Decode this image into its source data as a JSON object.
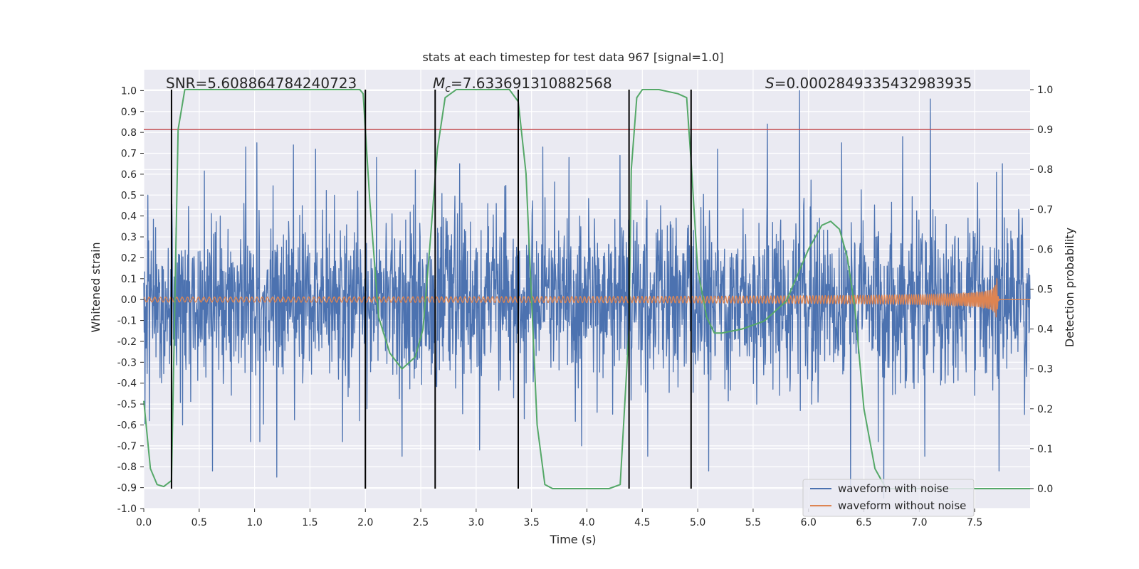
{
  "chart_data": {
    "type": "line",
    "title": "stats at each timestep for test data 967 [signal=1.0]",
    "xlabel": "Time (s)",
    "ylabel": "Whitened strain",
    "y2label": "Detection probability",
    "xlim": [
      0.0,
      8.0
    ],
    "ylim": [
      -1.0,
      1.1
    ],
    "y2lim": [
      -0.05,
      1.05
    ],
    "xticks": [
      "0.0",
      "0.5",
      "1.0",
      "1.5",
      "2.0",
      "2.5",
      "3.0",
      "3.5",
      "4.0",
      "4.5",
      "5.0",
      "5.5",
      "6.0",
      "6.5",
      "7.0",
      "7.5"
    ],
    "yticks": [
      "1.0",
      "0.9",
      "0.8",
      "0.7",
      "0.6",
      "0.5",
      "0.4",
      "0.3",
      "0.2",
      "0.1",
      "0.0",
      "-0.1",
      "-0.2",
      "-0.3",
      "-0.4",
      "-0.5",
      "-0.6",
      "-0.7",
      "-0.8",
      "-0.9",
      "-1.0"
    ],
    "y2ticks": [
      "1.0",
      "0.9",
      "0.8",
      "0.7",
      "0.6",
      "0.5",
      "0.4",
      "0.3",
      "0.2",
      "0.1",
      "0.0"
    ],
    "grid": true,
    "background": "#eaeaf2",
    "legend_position": "lower-right",
    "annotations": {
      "snr": "SNR=5.608864784240723",
      "mc_symbol": "M",
      "mc_sub": "c",
      "mc_value": "=7.633691310882568",
      "s_symbol": "S",
      "s_value": "=0.0002849335432983935"
    },
    "threshold": {
      "value": 0.9,
      "axis": "right",
      "color": "#c44e52"
    },
    "vertical_lines_x": [
      0.25,
      2.0,
      2.63,
      3.38,
      4.38,
      4.94
    ],
    "vertical_lines_color": "#000000",
    "series": [
      {
        "name": "waveform with noise",
        "color": "#4c72b0",
        "kind": "noise",
        "typical_envelope": 0.45,
        "upper_peaks": [
          [
            0.35,
            0.62
          ],
          [
            0.62,
            0.62
          ],
          [
            0.92,
            0.73
          ],
          [
            1.02,
            0.75
          ],
          [
            1.35,
            0.74
          ],
          [
            1.55,
            0.72
          ],
          [
            2.1,
            0.68
          ],
          [
            2.45,
            0.62
          ],
          [
            2.85,
            0.65
          ],
          [
            3.6,
            0.73
          ],
          [
            4.3,
            0.69
          ],
          [
            4.55,
            0.68
          ],
          [
            5.18,
            0.72
          ],
          [
            5.63,
            0.84
          ],
          [
            5.92,
            1.0
          ],
          [
            6.3,
            0.75
          ],
          [
            6.85,
            0.78
          ],
          [
            7.1,
            0.96
          ],
          [
            7.75,
            0.65
          ],
          [
            7.95,
            0.63
          ]
        ],
        "lower_peaks": [
          [
            0.05,
            -0.58
          ],
          [
            0.35,
            -0.6
          ],
          [
            0.62,
            -0.82
          ],
          [
            1.2,
            -0.55
          ],
          [
            1.2,
            -0.85
          ],
          [
            2.33,
            -0.75
          ],
          [
            3.03,
            -0.72
          ],
          [
            3.95,
            -0.7
          ],
          [
            4.55,
            -0.75
          ],
          [
            5.1,
            -0.82
          ],
          [
            6.38,
            -0.9
          ],
          [
            6.68,
            -0.95
          ],
          [
            7.05,
            -0.75
          ],
          [
            7.72,
            -0.82
          ],
          [
            7.95,
            -0.55
          ]
        ]
      },
      {
        "name": "waveform without noise",
        "color": "#dd8452",
        "kind": "chirp",
        "t_merger": 7.7,
        "amplitude_early": 0.012,
        "amplitude_peak": 0.13,
        "frequency_start_hz": 20,
        "frequency_end_hz": 70
      },
      {
        "name": "",
        "color": "#55a868",
        "axis": "right",
        "x": [
          0.0,
          0.06,
          0.12,
          0.18,
          0.25,
          0.31,
          0.37,
          0.45,
          1.5,
          1.95,
          1.98,
          2.04,
          2.12,
          2.22,
          2.33,
          2.45,
          2.52,
          2.58,
          2.65,
          2.72,
          2.82,
          3.3,
          3.38,
          3.45,
          3.55,
          3.62,
          3.69,
          4.2,
          4.3,
          4.38,
          4.4,
          4.45,
          4.5,
          4.65,
          4.82,
          4.9,
          4.94,
          5.0,
          5.08,
          5.15,
          5.22,
          5.4,
          5.6,
          5.8,
          6.0,
          6.12,
          6.2,
          6.28,
          6.35,
          6.42,
          6.5,
          6.6,
          6.7,
          8.0
        ],
        "y": [
          0.22,
          0.05,
          0.01,
          0.005,
          0.02,
          0.9,
          1.0,
          1.0,
          1.0,
          1.0,
          0.99,
          0.72,
          0.43,
          0.34,
          0.3,
          0.33,
          0.4,
          0.6,
          0.85,
          0.98,
          1.0,
          1.0,
          0.97,
          0.79,
          0.16,
          0.01,
          0.0,
          0.0,
          0.01,
          0.4,
          0.8,
          0.98,
          1.0,
          1.0,
          0.99,
          0.98,
          0.82,
          0.55,
          0.43,
          0.39,
          0.39,
          0.4,
          0.42,
          0.47,
          0.6,
          0.66,
          0.67,
          0.65,
          0.58,
          0.45,
          0.2,
          0.05,
          0.0,
          0.0
        ]
      }
    ]
  }
}
